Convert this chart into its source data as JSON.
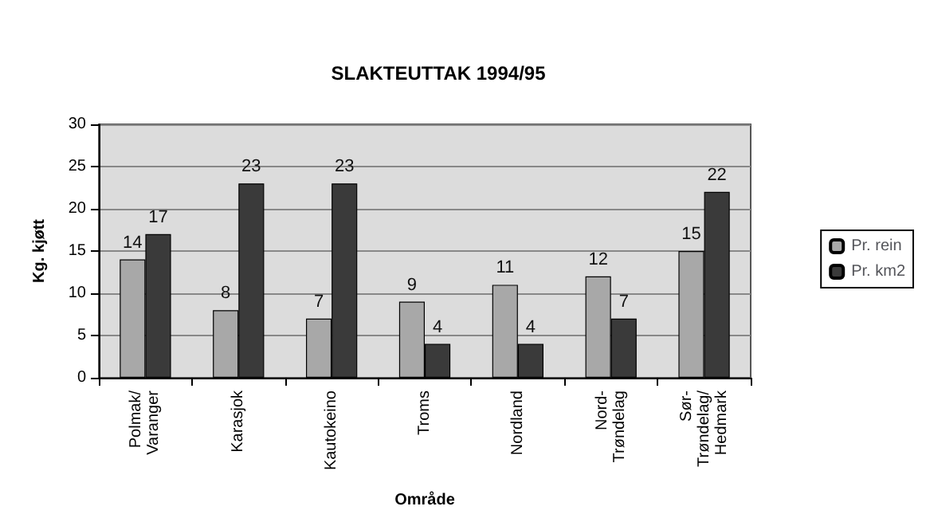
{
  "chart_data": {
    "type": "bar",
    "title": "SLAKTEUTTAK 1994/95",
    "xlabel": "Område",
    "ylabel": "Kg. kjøtt",
    "categories": [
      "Polmak/\nVaranger",
      "Karasjok",
      "Kautokeino",
      "Troms",
      "Nordland",
      "Nord-\nTrøndelag",
      "Sør-\nTrøndelag/\nHedmark"
    ],
    "series": [
      {
        "name": "Pr. rein",
        "color": "#a8a8a8",
        "values": [
          14,
          8,
          7,
          9,
          11,
          12,
          15
        ]
      },
      {
        "name": "Pr. km2",
        "color": "#3a3a3a",
        "values": [
          17,
          23,
          23,
          4,
          4,
          7,
          22
        ]
      }
    ],
    "ylim": [
      0,
      30
    ],
    "yticks": [
      0,
      5,
      10,
      15,
      20,
      25,
      30
    ],
    "grid": "y",
    "legend": "right",
    "data_labels": true
  }
}
